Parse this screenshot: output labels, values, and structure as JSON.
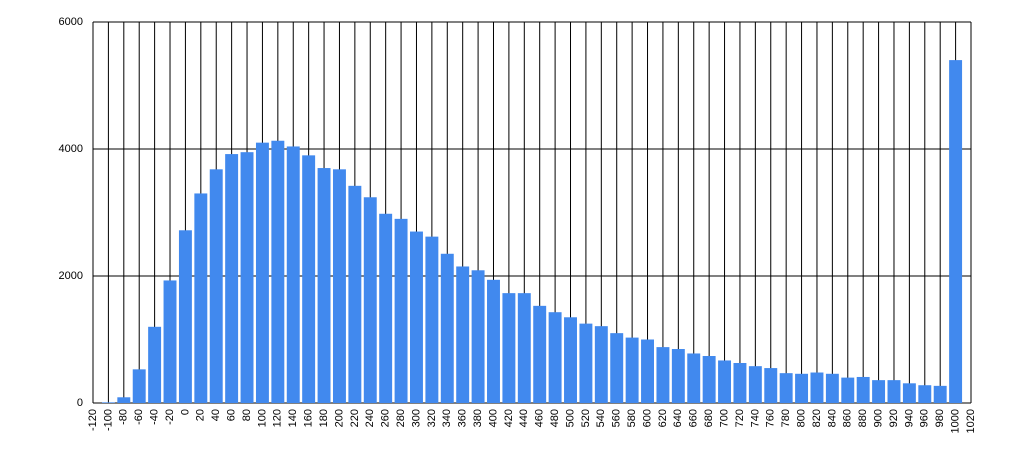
{
  "chart_data": {
    "type": "bar",
    "x": [
      -100,
      -80,
      -60,
      -40,
      -20,
      0,
      20,
      40,
      60,
      80,
      100,
      120,
      140,
      160,
      180,
      200,
      220,
      240,
      260,
      280,
      300,
      320,
      340,
      360,
      380,
      400,
      420,
      440,
      460,
      480,
      500,
      520,
      540,
      560,
      580,
      600,
      620,
      640,
      660,
      680,
      700,
      720,
      740,
      760,
      780,
      800,
      820,
      840,
      860,
      880,
      900,
      920,
      940,
      960,
      980,
      1000
    ],
    "values": [
      10,
      90,
      530,
      1200,
      1930,
      2720,
      3300,
      3680,
      3920,
      3950,
      4100,
      4130,
      4040,
      3900,
      3700,
      3680,
      3420,
      3240,
      2980,
      2900,
      2700,
      2620,
      2350,
      2150,
      2090,
      1940,
      1730,
      1730,
      1530,
      1430,
      1350,
      1250,
      1210,
      1100,
      1030,
      1000,
      880,
      850,
      780,
      740,
      670,
      630,
      580,
      550,
      470,
      460,
      480,
      460,
      400,
      410,
      360,
      360,
      310,
      280,
      270,
      5400
    ],
    "color": "#4189ee",
    "xlim": [
      -120,
      1020
    ],
    "xticks": [
      -120,
      -100,
      -80,
      -60,
      -40,
      -20,
      0,
      20,
      40,
      60,
      80,
      100,
      120,
      140,
      160,
      180,
      200,
      220,
      240,
      260,
      280,
      300,
      320,
      340,
      360,
      380,
      400,
      420,
      440,
      460,
      480,
      500,
      520,
      540,
      560,
      580,
      600,
      620,
      640,
      660,
      680,
      700,
      720,
      740,
      760,
      780,
      800,
      820,
      840,
      860,
      880,
      900,
      920,
      940,
      960,
      980,
      1000,
      1020
    ],
    "ylim": [
      0,
      6000
    ],
    "yticks": [
      0,
      2000,
      4000,
      6000
    ],
    "grid": true
  }
}
